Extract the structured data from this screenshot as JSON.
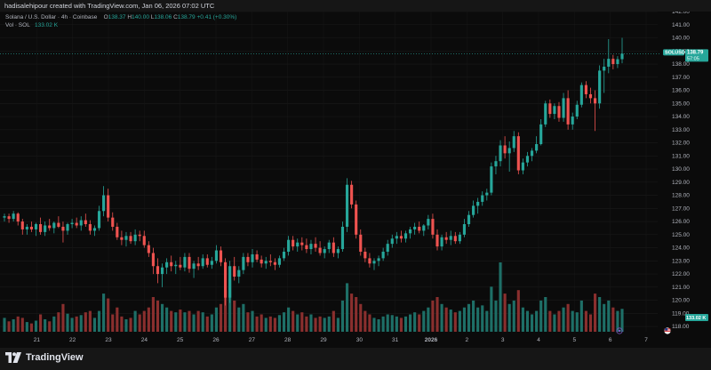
{
  "header": {
    "creator_line": "hadisalehipour created with TradingView.com, Jan 06, 2026 07:02 UTC"
  },
  "legend": {
    "symbol": "Solana / U.S. Dollar · 4h · Coinbase",
    "o_label": "O",
    "o_value": "138.37",
    "h_label": "H",
    "h_value": "140.00",
    "l_label": "L",
    "l_value": "138.06",
    "c_label": "C",
    "c_value": "138.79",
    "change": "+0.41 (+0.30%)",
    "vol_label": "Vol · SOL",
    "vol_value": "133.02 K"
  },
  "badges": {
    "symbol_tag": "SOLUSD",
    "price_tag": "138.79",
    "countdown": "57:05",
    "volume_tag": "133.02 K"
  },
  "footer": {
    "brand": "TradingView",
    "logo_icon": "tradingview-logo-icon"
  },
  "colors": {
    "up": "#26a69a",
    "down": "#ef5350",
    "up_volume": "#1e6f67",
    "down_volume": "#8a2f2e",
    "background": "#0b0b0b",
    "text": "#b2b5be"
  },
  "chart_data": {
    "type": "candlestick",
    "symbol": "SOLUSD",
    "ylim": [
      117.6,
      142.0
    ],
    "y_ticks": [
      118,
      119,
      120,
      121,
      122,
      123,
      124,
      125,
      126,
      127,
      128,
      129,
      130,
      131,
      132,
      133,
      134,
      135,
      136,
      137,
      138,
      139,
      140,
      141,
      142
    ],
    "x_ticks": [
      "21",
      "22",
      "23",
      "24",
      "25",
      "26",
      "27",
      "28",
      "29",
      "30",
      "31",
      "2026",
      "2",
      "3",
      "4",
      "5",
      "6",
      "7"
    ],
    "last_price": 138.79,
    "grid": true,
    "candles": [
      {
        "o": 126.3,
        "h": 126.6,
        "l": 126.0,
        "c": 126.4,
        "v": 20
      },
      {
        "o": 126.4,
        "h": 126.6,
        "l": 125.9,
        "c": 126.2,
        "v": 15
      },
      {
        "o": 126.2,
        "h": 126.8,
        "l": 126.0,
        "c": 126.6,
        "v": 18
      },
      {
        "o": 126.6,
        "h": 126.7,
        "l": 125.7,
        "c": 126.0,
        "v": 22
      },
      {
        "o": 126.0,
        "h": 126.2,
        "l": 125.0,
        "c": 125.4,
        "v": 20
      },
      {
        "o": 125.4,
        "h": 125.8,
        "l": 125.0,
        "c": 125.6,
        "v": 14
      },
      {
        "o": 125.6,
        "h": 126.0,
        "l": 125.2,
        "c": 125.4,
        "v": 12
      },
      {
        "o": 125.4,
        "h": 125.9,
        "l": 124.9,
        "c": 125.8,
        "v": 16
      },
      {
        "o": 125.8,
        "h": 126.3,
        "l": 125.0,
        "c": 125.2,
        "v": 25
      },
      {
        "o": 125.2,
        "h": 126.0,
        "l": 124.9,
        "c": 125.7,
        "v": 18
      },
      {
        "o": 125.7,
        "h": 126.2,
        "l": 125.3,
        "c": 125.5,
        "v": 15
      },
      {
        "o": 125.5,
        "h": 126.0,
        "l": 125.1,
        "c": 125.9,
        "v": 22
      },
      {
        "o": 125.9,
        "h": 126.4,
        "l": 125.5,
        "c": 125.6,
        "v": 28
      },
      {
        "o": 125.6,
        "h": 126.0,
        "l": 124.4,
        "c": 125.3,
        "v": 40
      },
      {
        "o": 125.3,
        "h": 125.9,
        "l": 125.0,
        "c": 125.8,
        "v": 26
      },
      {
        "o": 125.8,
        "h": 126.2,
        "l": 125.5,
        "c": 125.9,
        "v": 20
      },
      {
        "o": 125.9,
        "h": 126.3,
        "l": 125.5,
        "c": 125.7,
        "v": 22
      },
      {
        "o": 125.7,
        "h": 126.4,
        "l": 125.3,
        "c": 126.1,
        "v": 24
      },
      {
        "o": 126.1,
        "h": 126.6,
        "l": 125.6,
        "c": 125.8,
        "v": 28
      },
      {
        "o": 125.8,
        "h": 126.1,
        "l": 125.0,
        "c": 125.3,
        "v": 30
      },
      {
        "o": 125.3,
        "h": 125.7,
        "l": 124.9,
        "c": 125.5,
        "v": 20
      },
      {
        "o": 125.5,
        "h": 127.2,
        "l": 125.3,
        "c": 126.8,
        "v": 30
      },
      {
        "o": 126.8,
        "h": 128.7,
        "l": 126.4,
        "c": 128.0,
        "v": 55
      },
      {
        "o": 128.0,
        "h": 128.5,
        "l": 126.0,
        "c": 126.3,
        "v": 48
      },
      {
        "o": 126.3,
        "h": 126.7,
        "l": 125.3,
        "c": 125.6,
        "v": 25
      },
      {
        "o": 125.6,
        "h": 125.9,
        "l": 124.6,
        "c": 124.8,
        "v": 35
      },
      {
        "o": 124.8,
        "h": 125.3,
        "l": 124.2,
        "c": 124.6,
        "v": 22
      },
      {
        "o": 124.6,
        "h": 125.2,
        "l": 124.1,
        "c": 124.9,
        "v": 18
      },
      {
        "o": 124.9,
        "h": 125.2,
        "l": 124.3,
        "c": 124.5,
        "v": 20
      },
      {
        "o": 124.5,
        "h": 125.4,
        "l": 124.2,
        "c": 125.0,
        "v": 30
      },
      {
        "o": 125.0,
        "h": 125.3,
        "l": 124.5,
        "c": 124.9,
        "v": 25
      },
      {
        "o": 124.9,
        "h": 125.3,
        "l": 124.0,
        "c": 124.2,
        "v": 30
      },
      {
        "o": 124.2,
        "h": 124.5,
        "l": 123.3,
        "c": 123.6,
        "v": 35
      },
      {
        "o": 123.6,
        "h": 124.0,
        "l": 122.0,
        "c": 122.6,
        "v": 50
      },
      {
        "o": 122.6,
        "h": 123.2,
        "l": 121.3,
        "c": 122.0,
        "v": 45
      },
      {
        "o": 122.0,
        "h": 122.8,
        "l": 121.0,
        "c": 122.5,
        "v": 40
      },
      {
        "o": 122.5,
        "h": 123.2,
        "l": 122.0,
        "c": 122.9,
        "v": 35
      },
      {
        "o": 122.9,
        "h": 123.4,
        "l": 122.2,
        "c": 122.6,
        "v": 30
      },
      {
        "o": 122.6,
        "h": 123.0,
        "l": 122.0,
        "c": 122.7,
        "v": 28
      },
      {
        "o": 122.7,
        "h": 123.3,
        "l": 122.3,
        "c": 122.5,
        "v": 32
      },
      {
        "o": 122.5,
        "h": 123.6,
        "l": 122.2,
        "c": 123.3,
        "v": 28
      },
      {
        "o": 123.3,
        "h": 123.6,
        "l": 122.1,
        "c": 122.4,
        "v": 30
      },
      {
        "o": 122.4,
        "h": 123.0,
        "l": 121.7,
        "c": 122.8,
        "v": 25
      },
      {
        "o": 122.8,
        "h": 123.3,
        "l": 122.3,
        "c": 122.6,
        "v": 30
      },
      {
        "o": 122.6,
        "h": 123.5,
        "l": 122.4,
        "c": 123.2,
        "v": 28
      },
      {
        "o": 123.2,
        "h": 123.5,
        "l": 122.5,
        "c": 122.7,
        "v": 22
      },
      {
        "o": 122.7,
        "h": 123.3,
        "l": 122.4,
        "c": 123.0,
        "v": 25
      },
      {
        "o": 123.0,
        "h": 124.2,
        "l": 122.8,
        "c": 123.8,
        "v": 35
      },
      {
        "o": 123.8,
        "h": 124.1,
        "l": 122.6,
        "c": 122.9,
        "v": 40
      },
      {
        "o": 122.9,
        "h": 123.2,
        "l": 119.6,
        "c": 120.2,
        "v": 60
      },
      {
        "o": 120.2,
        "h": 123.0,
        "l": 119.8,
        "c": 122.6,
        "v": 75
      },
      {
        "o": 122.6,
        "h": 123.3,
        "l": 121.5,
        "c": 121.8,
        "v": 45
      },
      {
        "o": 121.8,
        "h": 122.6,
        "l": 121.3,
        "c": 122.3,
        "v": 35
      },
      {
        "o": 122.3,
        "h": 123.6,
        "l": 122.0,
        "c": 123.3,
        "v": 40
      },
      {
        "o": 123.3,
        "h": 123.6,
        "l": 122.6,
        "c": 122.9,
        "v": 28
      },
      {
        "o": 122.9,
        "h": 123.9,
        "l": 122.5,
        "c": 123.5,
        "v": 30
      },
      {
        "o": 123.5,
        "h": 123.8,
        "l": 122.9,
        "c": 123.1,
        "v": 22
      },
      {
        "o": 123.1,
        "h": 123.4,
        "l": 122.5,
        "c": 122.8,
        "v": 25
      },
      {
        "o": 122.8,
        "h": 123.3,
        "l": 122.4,
        "c": 123.0,
        "v": 20
      },
      {
        "o": 123.0,
        "h": 123.5,
        "l": 122.6,
        "c": 122.9,
        "v": 22
      },
      {
        "o": 122.9,
        "h": 123.2,
        "l": 122.3,
        "c": 122.7,
        "v": 20
      },
      {
        "o": 122.7,
        "h": 123.4,
        "l": 122.5,
        "c": 123.2,
        "v": 24
      },
      {
        "o": 123.2,
        "h": 124.0,
        "l": 123.0,
        "c": 123.7,
        "v": 28
      },
      {
        "o": 123.7,
        "h": 124.9,
        "l": 123.4,
        "c": 124.6,
        "v": 35
      },
      {
        "o": 124.6,
        "h": 124.9,
        "l": 123.8,
        "c": 124.1,
        "v": 30
      },
      {
        "o": 124.1,
        "h": 124.7,
        "l": 123.7,
        "c": 124.4,
        "v": 25
      },
      {
        "o": 124.4,
        "h": 124.8,
        "l": 123.8,
        "c": 124.2,
        "v": 28
      },
      {
        "o": 124.2,
        "h": 124.7,
        "l": 123.6,
        "c": 123.9,
        "v": 22
      },
      {
        "o": 123.9,
        "h": 124.6,
        "l": 123.5,
        "c": 124.3,
        "v": 25
      },
      {
        "o": 124.3,
        "h": 124.8,
        "l": 123.7,
        "c": 124.0,
        "v": 20
      },
      {
        "o": 124.0,
        "h": 124.5,
        "l": 123.4,
        "c": 123.6,
        "v": 22
      },
      {
        "o": 123.6,
        "h": 124.1,
        "l": 123.2,
        "c": 123.9,
        "v": 20
      },
      {
        "o": 123.9,
        "h": 124.6,
        "l": 123.6,
        "c": 124.4,
        "v": 22
      },
      {
        "o": 124.4,
        "h": 124.8,
        "l": 123.3,
        "c": 123.6,
        "v": 30
      },
      {
        "o": 123.6,
        "h": 124.1,
        "l": 123.2,
        "c": 123.9,
        "v": 20
      },
      {
        "o": 123.9,
        "h": 126.0,
        "l": 123.7,
        "c": 125.6,
        "v": 45
      },
      {
        "o": 125.6,
        "h": 129.3,
        "l": 125.2,
        "c": 128.8,
        "v": 70
      },
      {
        "o": 128.8,
        "h": 129.1,
        "l": 127.0,
        "c": 127.3,
        "v": 55
      },
      {
        "o": 127.3,
        "h": 127.6,
        "l": 124.7,
        "c": 125.0,
        "v": 50
      },
      {
        "o": 125.0,
        "h": 125.4,
        "l": 123.4,
        "c": 123.7,
        "v": 40
      },
      {
        "o": 123.7,
        "h": 124.0,
        "l": 122.9,
        "c": 123.2,
        "v": 30
      },
      {
        "o": 123.2,
        "h": 123.6,
        "l": 122.5,
        "c": 122.8,
        "v": 25
      },
      {
        "o": 122.8,
        "h": 123.2,
        "l": 122.3,
        "c": 123.0,
        "v": 20
      },
      {
        "o": 123.0,
        "h": 123.4,
        "l": 122.6,
        "c": 123.2,
        "v": 18
      },
      {
        "o": 123.2,
        "h": 124.0,
        "l": 123.0,
        "c": 123.7,
        "v": 22
      },
      {
        "o": 123.7,
        "h": 124.6,
        "l": 123.4,
        "c": 124.3,
        "v": 25
      },
      {
        "o": 124.3,
        "h": 125.0,
        "l": 124.0,
        "c": 124.7,
        "v": 24
      },
      {
        "o": 124.7,
        "h": 125.2,
        "l": 124.3,
        "c": 124.9,
        "v": 22
      },
      {
        "o": 124.9,
        "h": 125.3,
        "l": 124.4,
        "c": 124.7,
        "v": 20
      },
      {
        "o": 124.7,
        "h": 125.3,
        "l": 124.4,
        "c": 125.1,
        "v": 22
      },
      {
        "o": 125.1,
        "h": 125.6,
        "l": 124.7,
        "c": 125.4,
        "v": 25
      },
      {
        "o": 125.4,
        "h": 125.9,
        "l": 125.0,
        "c": 125.6,
        "v": 28
      },
      {
        "o": 125.6,
        "h": 126.0,
        "l": 125.1,
        "c": 125.3,
        "v": 25
      },
      {
        "o": 125.3,
        "h": 125.8,
        "l": 124.9,
        "c": 125.7,
        "v": 30
      },
      {
        "o": 125.7,
        "h": 126.5,
        "l": 125.4,
        "c": 126.2,
        "v": 35
      },
      {
        "o": 126.2,
        "h": 126.6,
        "l": 124.7,
        "c": 125.0,
        "v": 45
      },
      {
        "o": 125.0,
        "h": 125.4,
        "l": 123.8,
        "c": 124.1,
        "v": 50
      },
      {
        "o": 124.1,
        "h": 125.0,
        "l": 123.8,
        "c": 124.8,
        "v": 40
      },
      {
        "o": 124.8,
        "h": 125.2,
        "l": 124.3,
        "c": 124.6,
        "v": 35
      },
      {
        "o": 124.6,
        "h": 125.3,
        "l": 124.2,
        "c": 124.9,
        "v": 32
      },
      {
        "o": 124.9,
        "h": 125.2,
        "l": 124.3,
        "c": 124.5,
        "v": 28
      },
      {
        "o": 124.5,
        "h": 125.2,
        "l": 124.3,
        "c": 125.0,
        "v": 30
      },
      {
        "o": 125.0,
        "h": 126.2,
        "l": 124.8,
        "c": 125.8,
        "v": 35
      },
      {
        "o": 125.8,
        "h": 126.8,
        "l": 125.6,
        "c": 126.5,
        "v": 40
      },
      {
        "o": 126.5,
        "h": 127.6,
        "l": 126.3,
        "c": 127.2,
        "v": 45
      },
      {
        "o": 127.2,
        "h": 127.8,
        "l": 126.6,
        "c": 127.5,
        "v": 35
      },
      {
        "o": 127.5,
        "h": 128.3,
        "l": 127.2,
        "c": 128.0,
        "v": 38
      },
      {
        "o": 128.0,
        "h": 128.5,
        "l": 127.6,
        "c": 128.2,
        "v": 30
      },
      {
        "o": 128.2,
        "h": 130.5,
        "l": 128.0,
        "c": 130.2,
        "v": 65
      },
      {
        "o": 130.2,
        "h": 131.0,
        "l": 129.6,
        "c": 130.6,
        "v": 45
      },
      {
        "o": 130.6,
        "h": 132.2,
        "l": 130.2,
        "c": 131.8,
        "v": 100
      },
      {
        "o": 131.8,
        "h": 132.5,
        "l": 130.8,
        "c": 131.2,
        "v": 55
      },
      {
        "o": 131.2,
        "h": 132.1,
        "l": 129.8,
        "c": 131.6,
        "v": 40
      },
      {
        "o": 131.6,
        "h": 132.9,
        "l": 131.3,
        "c": 132.5,
        "v": 45
      },
      {
        "o": 132.5,
        "h": 132.8,
        "l": 129.6,
        "c": 129.9,
        "v": 60
      },
      {
        "o": 129.9,
        "h": 130.8,
        "l": 129.6,
        "c": 130.5,
        "v": 35
      },
      {
        "o": 130.5,
        "h": 131.3,
        "l": 130.2,
        "c": 131.0,
        "v": 30
      },
      {
        "o": 131.0,
        "h": 131.6,
        "l": 130.6,
        "c": 131.4,
        "v": 25
      },
      {
        "o": 131.4,
        "h": 132.5,
        "l": 131.2,
        "c": 131.9,
        "v": 30
      },
      {
        "o": 131.9,
        "h": 133.8,
        "l": 131.8,
        "c": 133.4,
        "v": 45
      },
      {
        "o": 133.4,
        "h": 135.2,
        "l": 133.2,
        "c": 135.0,
        "v": 50
      },
      {
        "o": 135.0,
        "h": 135.3,
        "l": 133.9,
        "c": 134.2,
        "v": 30
      },
      {
        "o": 134.2,
        "h": 135.0,
        "l": 133.8,
        "c": 134.8,
        "v": 25
      },
      {
        "o": 134.8,
        "h": 135.1,
        "l": 133.6,
        "c": 133.9,
        "v": 30
      },
      {
        "o": 133.9,
        "h": 135.8,
        "l": 133.6,
        "c": 135.4,
        "v": 35
      },
      {
        "o": 135.4,
        "h": 136.0,
        "l": 133.0,
        "c": 133.4,
        "v": 40
      },
      {
        "o": 133.4,
        "h": 134.3,
        "l": 133.0,
        "c": 134.0,
        "v": 30
      },
      {
        "o": 134.0,
        "h": 135.2,
        "l": 133.8,
        "c": 134.9,
        "v": 28
      },
      {
        "o": 134.9,
        "h": 136.6,
        "l": 134.7,
        "c": 136.4,
        "v": 45
      },
      {
        "o": 136.4,
        "h": 136.7,
        "l": 135.4,
        "c": 135.7,
        "v": 30
      },
      {
        "o": 135.7,
        "h": 136.2,
        "l": 135.0,
        "c": 135.4,
        "v": 25
      },
      {
        "o": 135.4,
        "h": 136.0,
        "l": 132.9,
        "c": 135.0,
        "v": 55
      },
      {
        "o": 135.0,
        "h": 137.9,
        "l": 134.6,
        "c": 137.5,
        "v": 50
      },
      {
        "o": 137.5,
        "h": 138.4,
        "l": 135.8,
        "c": 137.8,
        "v": 40
      },
      {
        "o": 137.8,
        "h": 139.9,
        "l": 137.3,
        "c": 138.4,
        "v": 45
      },
      {
        "o": 138.4,
        "h": 138.7,
        "l": 137.6,
        "c": 138.0,
        "v": 35
      },
      {
        "o": 138.0,
        "h": 138.6,
        "l": 137.7,
        "c": 138.37,
        "v": 30
      },
      {
        "o": 138.37,
        "h": 140.0,
        "l": 138.06,
        "c": 138.79,
        "v": 33
      }
    ]
  }
}
